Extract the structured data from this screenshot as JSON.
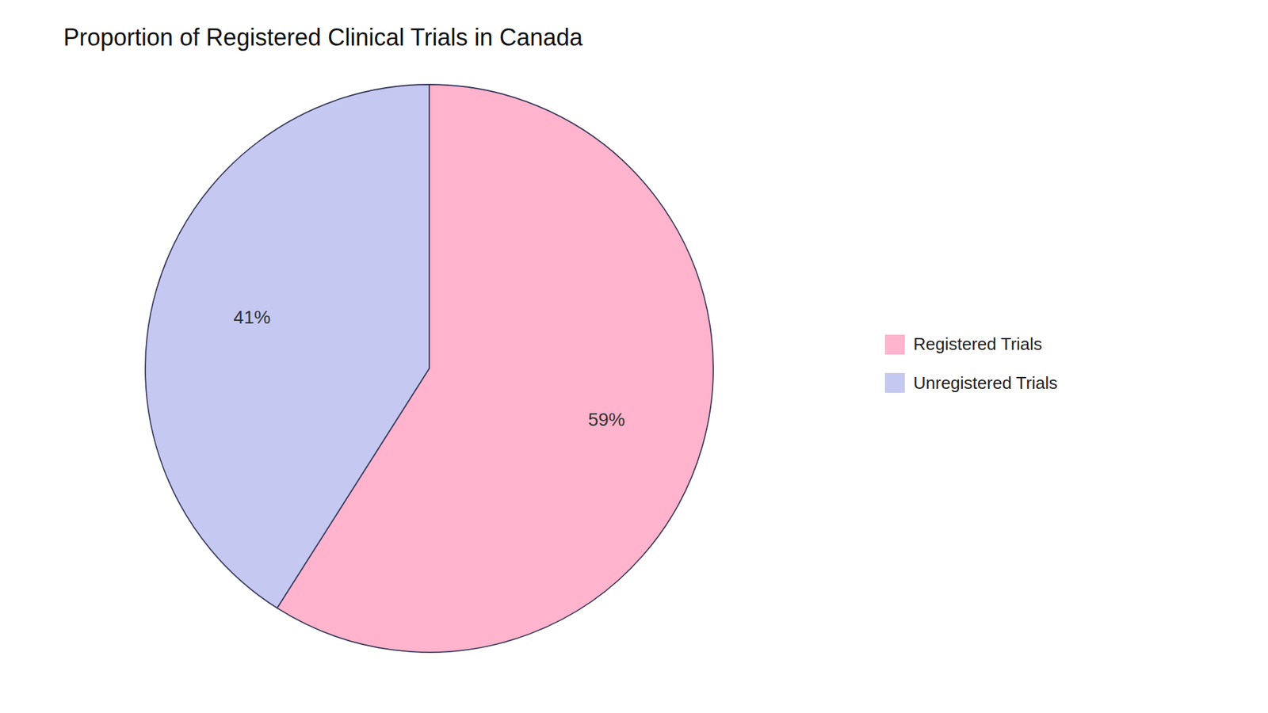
{
  "chart_data": {
    "type": "pie",
    "title": "Proportion of Registered Clinical Trials in Canada",
    "categories": [
      "Registered Trials",
      "Unregistered Trials"
    ],
    "values": [
      59,
      41
    ],
    "value_labels": [
      "59%",
      "41%"
    ],
    "colors": [
      "#FFB3CC",
      "#C5C8F0"
    ],
    "data_labels": true,
    "legend": "right"
  }
}
